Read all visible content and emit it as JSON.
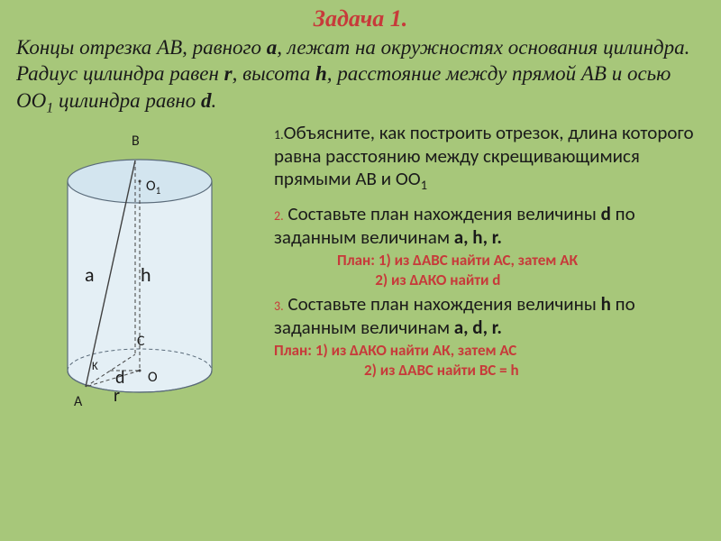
{
  "title": "Задача 1.",
  "problem": "Концы отрезка АВ, равного <b>а</b>, лежат на окружностях основания цилиндра. Радиус цилиндра равен <b>r</b>, высота <b>h</b>, расстояние между прямой АВ и осью ОО<span class=\"sub\">1</span> цилиндра равно <b>d</b>.",
  "q1_num": "1.",
  "q1": "Объясните, как построить отрезок, длина которого равна расстоянию между скрещивающимися прямыми АВ и ОО<span class=\"sub\">1</span>",
  "q2_num": "2.",
  "q2": " Составьте план нахождения величины <b>d</b> по заданным величинам  <b>a, h, r.</b>",
  "plan1a": "План: 1)  из ∆АВС найти АС, затем АК",
  "plan1b": "           2) из ∆АКО найти d",
  "q3_num": "3.",
  "q3": " Составьте план нахождения величины <b>h</b> по заданным величинам <b>a, d, r.</b>",
  "plan2a": "План:  1)  из ∆АКО найти АК, затем АС",
  "plan2b": "2) из ∆АВС найти ВС = h",
  "labels": {
    "B": "B",
    "O1": "O",
    "O1sub": "1",
    "a": "a",
    "h": "h",
    "C": "C",
    "K": "K",
    "d": "d",
    "O": "O",
    "r": "r",
    "A": "A"
  },
  "colors": {
    "bg": "#a7c77a",
    "red": "#c73a3a",
    "cyl_fill": "#e4eff5",
    "cyl_top": "#d3e5ef",
    "stroke": "#5a6b7a"
  }
}
